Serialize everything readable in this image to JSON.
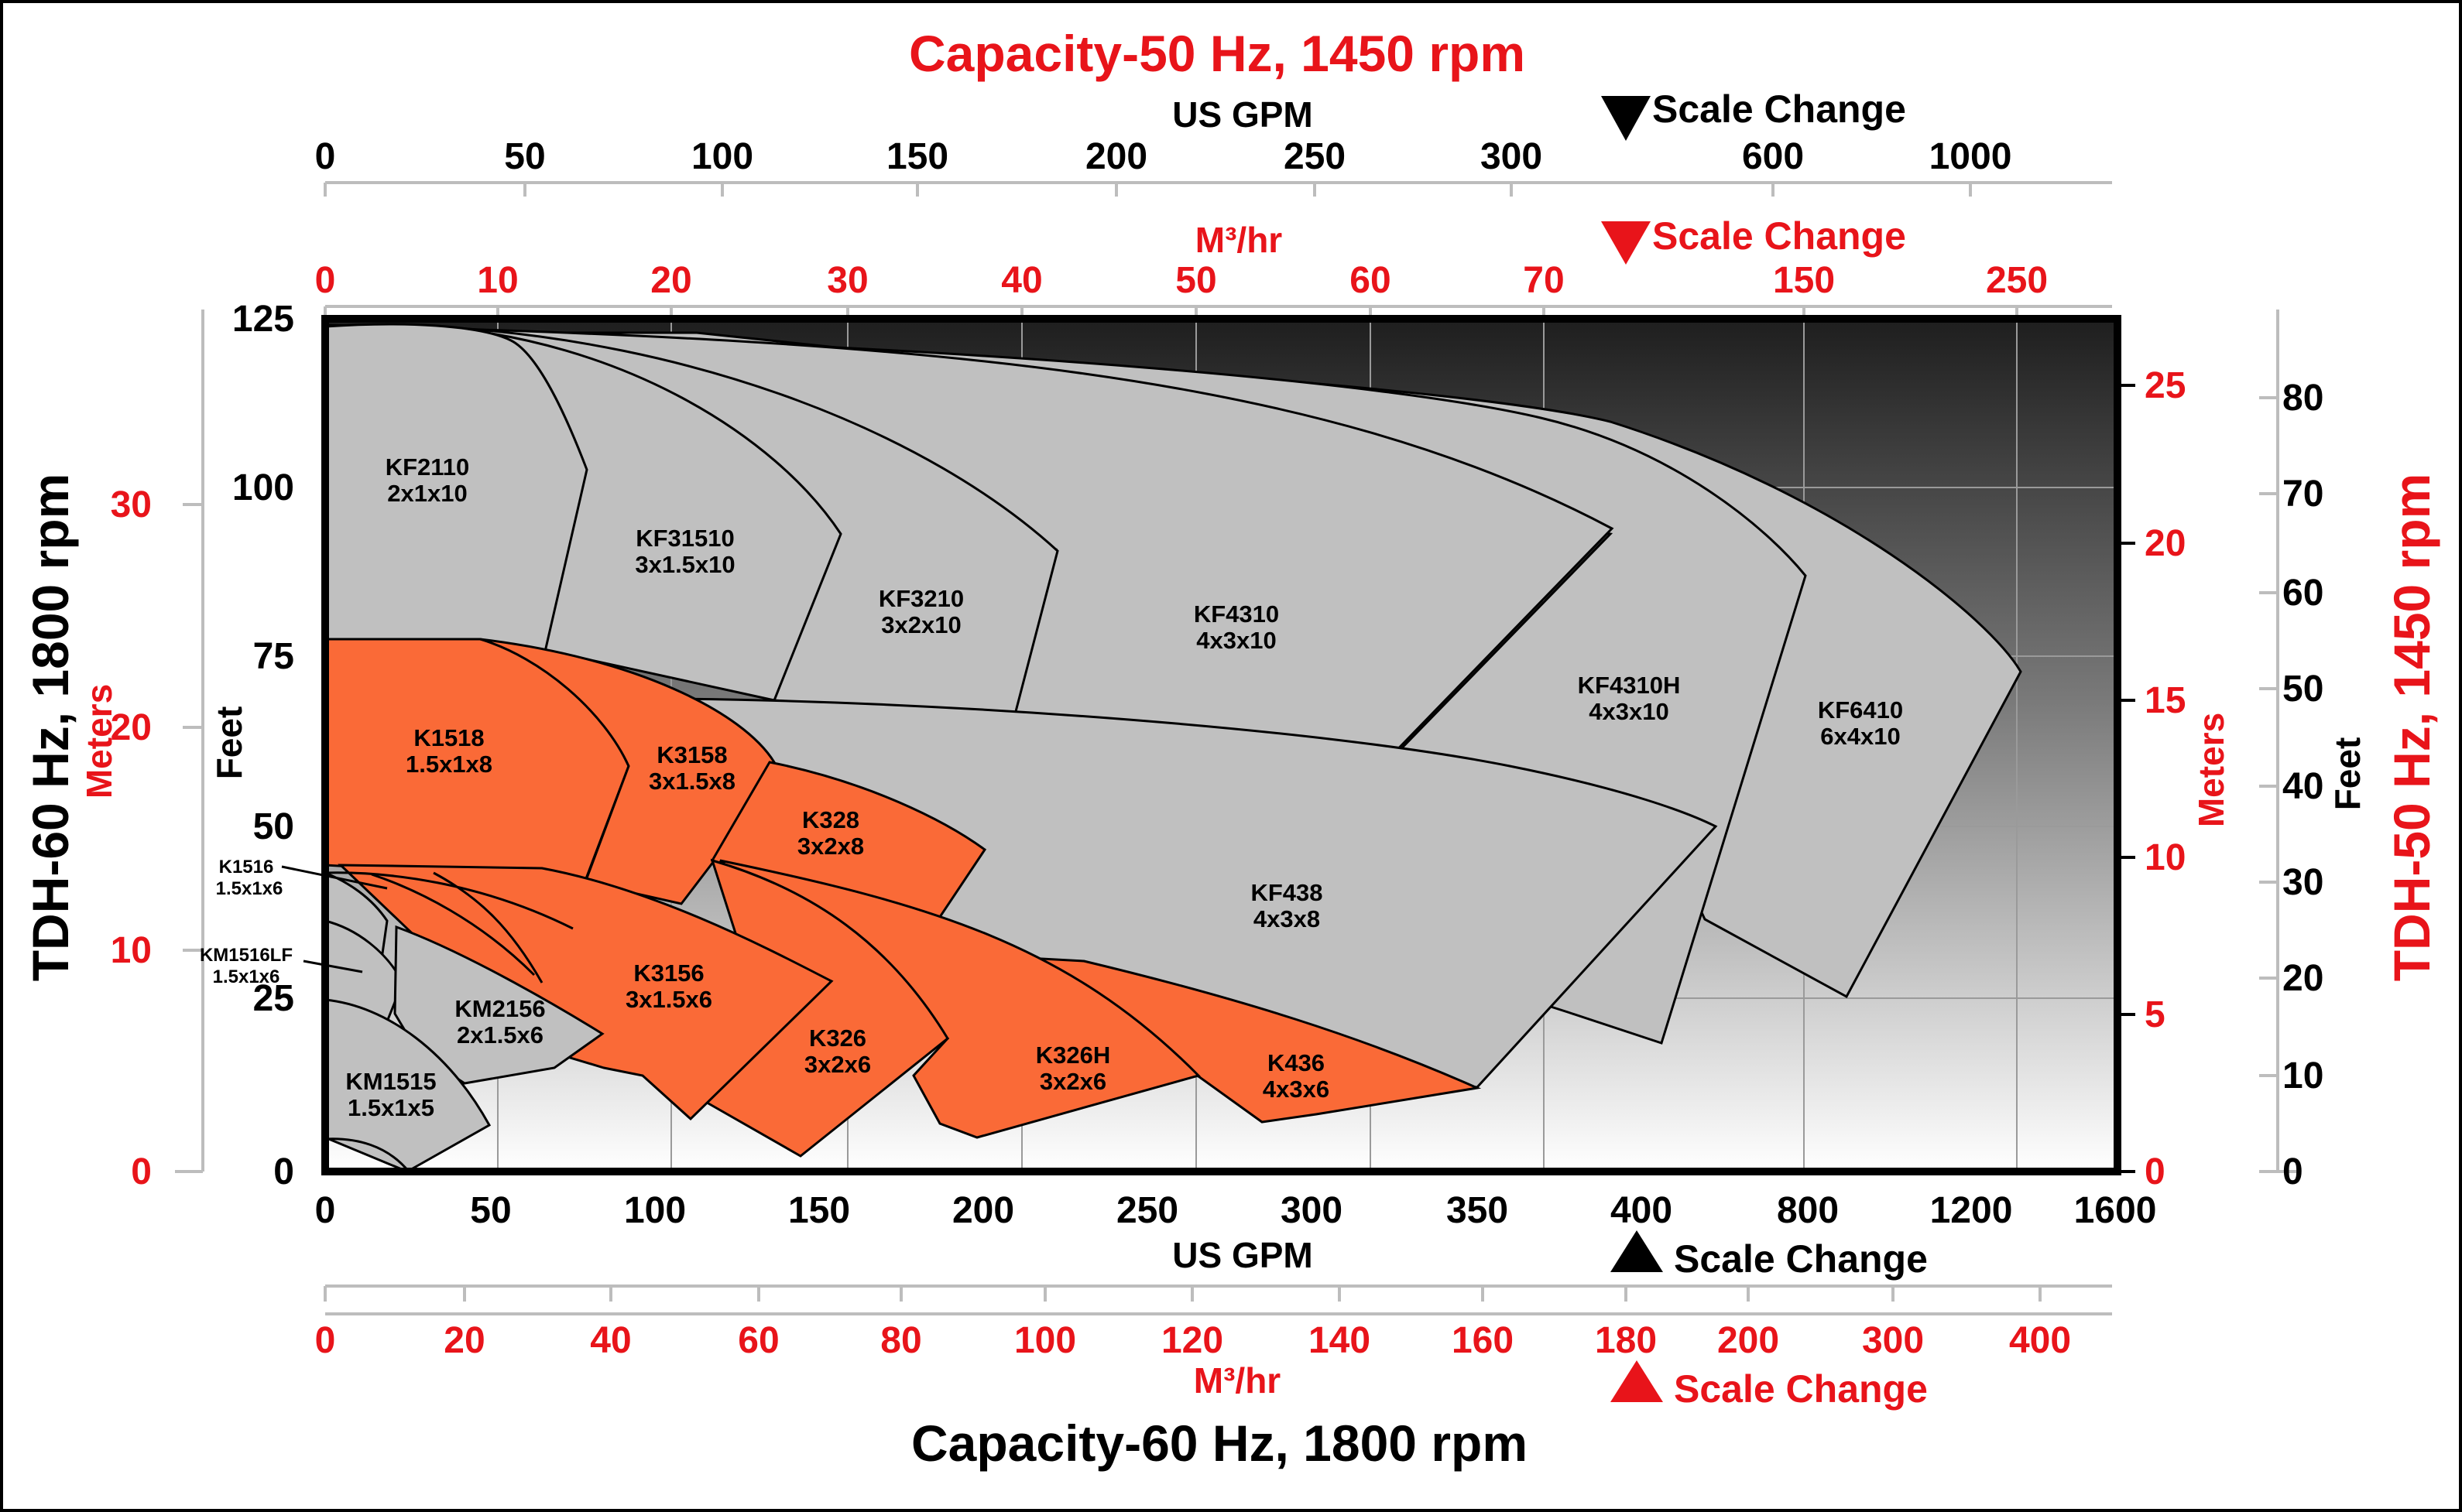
{
  "chart_data": {
    "type": "area",
    "title_top": "Capacity-50 Hz, 1450 rpm",
    "title_bottom": "Capacity-60 Hz, 1800 rpm",
    "ylabel_left": "TDH-60 Hz, 1800 rpm",
    "ylabel_right": "TDH-50 Hz, 1450 rpm",
    "axes": {
      "top_gpm": {
        "label": "US GPM",
        "ticks": [
          "0",
          "50",
          "100",
          "150",
          "200",
          "250",
          "300",
          "600",
          "1000"
        ],
        "scale_change_label": "Scale Change"
      },
      "top_m3hr": {
        "label": "M³/hr",
        "ticks": [
          "0",
          "10",
          "20",
          "30",
          "40",
          "50",
          "60",
          "70",
          "150",
          "250"
        ],
        "scale_change_label": "Scale Change"
      },
      "bottom_gpm": {
        "label": "US GPM",
        "ticks": [
          "0",
          "50",
          "100",
          "150",
          "200",
          "250",
          "300",
          "350",
          "400",
          "800",
          "1200",
          "1600"
        ],
        "scale_change_label": "Scale Change"
      },
      "bottom_m3hr": {
        "label": "M³/hr",
        "ticks": [
          "0",
          "20",
          "40",
          "60",
          "80",
          "100",
          "120",
          "140",
          "160",
          "180",
          "200",
          "300",
          "400"
        ],
        "scale_change_label": "Scale Change"
      },
      "left_feet": {
        "label": "Feet",
        "ticks": [
          "0",
          "25",
          "50",
          "75",
          "100",
          "125"
        ],
        "ylim": [
          0,
          125
        ]
      },
      "left_meters": {
        "label": "Meters",
        "ticks": [
          "0",
          "10",
          "20",
          "30"
        ]
      },
      "right_meters": {
        "label": "Meters",
        "ticks": [
          "0",
          "5",
          "10",
          "15",
          "20",
          "25"
        ]
      },
      "right_feet": {
        "label": "Feet",
        "ticks": [
          "0",
          "10",
          "20",
          "30",
          "40",
          "50",
          "60",
          "70",
          "80"
        ]
      }
    },
    "grid": true,
    "colors": {
      "gray_region": "#c0c0c0",
      "orange_region": "#fa6a37",
      "accent_red": "#e8141a"
    },
    "regions": [
      {
        "name": "KF2110",
        "size": "2x1x10",
        "color": "gray"
      },
      {
        "name": "KF31510",
        "size": "3x1.5x10",
        "color": "gray"
      },
      {
        "name": "KF3210",
        "size": "3x2x10",
        "color": "gray"
      },
      {
        "name": "KF4310",
        "size": "4x3x10",
        "color": "gray"
      },
      {
        "name": "KF4310H",
        "size": "4x3x10",
        "color": "gray"
      },
      {
        "name": "KF6410",
        "size": "6x4x10",
        "color": "gray"
      },
      {
        "name": "KF438",
        "size": "4x3x8",
        "color": "gray"
      },
      {
        "name": "K1518",
        "size": "1.5x1x8",
        "color": "orange"
      },
      {
        "name": "K3158",
        "size": "3x1.5x8",
        "color": "orange"
      },
      {
        "name": "K328",
        "size": "3x2x8",
        "color": "orange"
      },
      {
        "name": "K3156",
        "size": "3x1.5x6",
        "color": "orange"
      },
      {
        "name": "K326",
        "size": "3x2x6",
        "color": "orange"
      },
      {
        "name": "K326H",
        "size": "3x2x6",
        "color": "orange"
      },
      {
        "name": "K436",
        "size": "4x3x6",
        "color": "orange"
      },
      {
        "name": "K1516",
        "size": "1.5x1x6",
        "color": "gray"
      },
      {
        "name": "KM1516LF",
        "size": "1.5x1x6",
        "color": "gray"
      },
      {
        "name": "KM2156",
        "size": "2x1.5x6",
        "color": "gray"
      },
      {
        "name": "KM1515",
        "size": "1.5x1x5",
        "color": "gray"
      }
    ]
  }
}
